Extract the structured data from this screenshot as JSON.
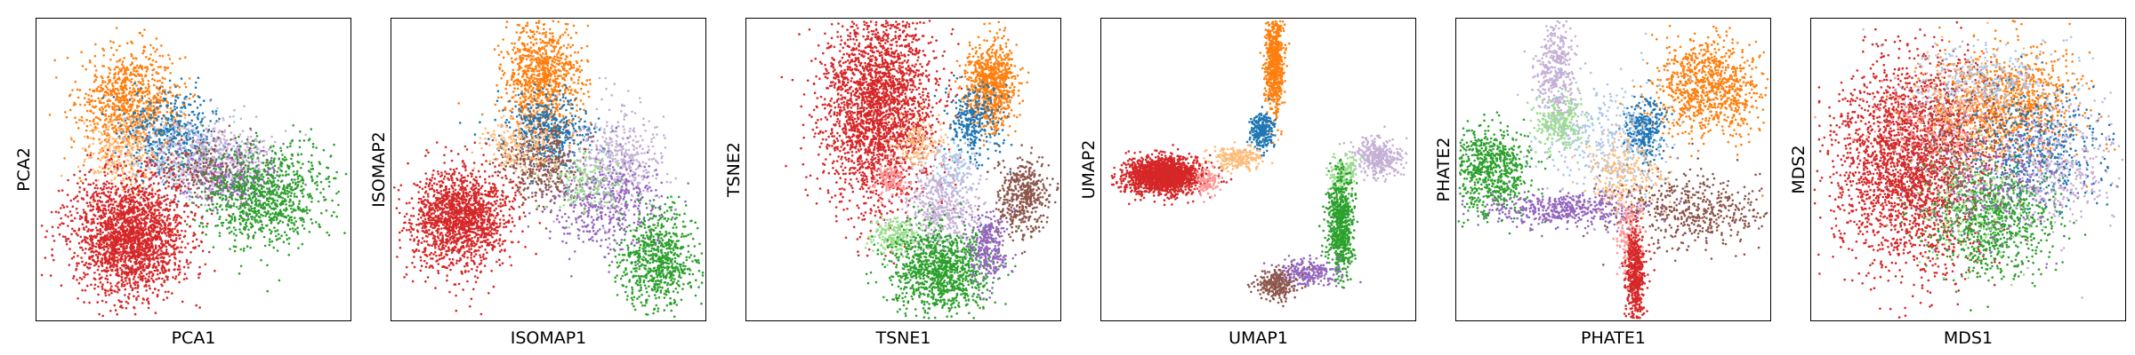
{
  "palette": {
    "blue": "#1f77b4",
    "orange": "#ff7f0e",
    "light_orange": "#ffbb78",
    "green": "#2ca02c",
    "light_green": "#98df8a",
    "red": "#d62728",
    "pink": "#ff9896",
    "purple": "#9467bd",
    "lavender": "#c5b0d5",
    "brown": "#8c564b",
    "light_blue": "#aec7e8"
  },
  "chart_data": [
    {
      "type": "scatter",
      "xlabel": "PCA1",
      "ylabel": "PCA2",
      "xlim": [
        0,
        100
      ],
      "ylim": [
        0,
        100
      ],
      "ticks": "none",
      "grid": false,
      "clusters": [
        {
          "color": "orange",
          "center": [
            30,
            72
          ],
          "spread": [
            8,
            9
          ],
          "points": 900
        },
        {
          "color": "blue",
          "center": [
            43,
            62
          ],
          "spread": [
            8,
            7
          ],
          "points": 450
        },
        {
          "color": "light_orange",
          "center": [
            27,
            55
          ],
          "spread": [
            6,
            6
          ],
          "points": 250
        },
        {
          "color": "light_blue",
          "center": [
            45,
            55
          ],
          "spread": [
            9,
            7
          ],
          "points": 250
        },
        {
          "color": "lavender",
          "center": [
            58,
            53
          ],
          "spread": [
            9,
            6
          ],
          "points": 450
        },
        {
          "color": "purple",
          "center": [
            62,
            47
          ],
          "spread": [
            8,
            5
          ],
          "points": 250
        },
        {
          "color": "brown",
          "center": [
            55,
            50
          ],
          "spread": [
            7,
            6
          ],
          "points": 200
        },
        {
          "color": "green",
          "center": [
            73,
            41
          ],
          "spread": [
            10,
            8
          ],
          "points": 900
        },
        {
          "color": "red",
          "center": [
            30,
            28
          ],
          "spread": [
            9,
            10
          ],
          "points": 2200
        }
      ]
    },
    {
      "type": "scatter",
      "xlabel": "ISOMAP1",
      "ylabel": "ISOMAP2",
      "xlim": [
        0,
        100
      ],
      "ylim": [
        0,
        100
      ],
      "ticks": "none",
      "grid": false,
      "clusters": [
        {
          "color": "orange",
          "center": [
            48,
            80
          ],
          "spread": [
            6,
            9
          ],
          "points": 900
        },
        {
          "color": "blue",
          "center": [
            50,
            63
          ],
          "spread": [
            7,
            6
          ],
          "points": 450
        },
        {
          "color": "brown",
          "center": [
            48,
            52
          ],
          "spread": [
            7,
            7
          ],
          "points": 450
        },
        {
          "color": "light_orange",
          "center": [
            40,
            58
          ],
          "spread": [
            6,
            5
          ],
          "points": 200
        },
        {
          "color": "lavender",
          "center": [
            72,
            52
          ],
          "spread": [
            7,
            9
          ],
          "points": 450
        },
        {
          "color": "purple",
          "center": [
            68,
            38
          ],
          "spread": [
            9,
            8
          ],
          "points": 450
        },
        {
          "color": "light_green",
          "center": [
            62,
            45
          ],
          "spread": [
            5,
            5
          ],
          "points": 150
        },
        {
          "color": "green",
          "center": [
            85,
            20
          ],
          "spread": [
            6,
            8
          ],
          "points": 700
        },
        {
          "color": "red",
          "center": [
            22,
            34
          ],
          "spread": [
            8,
            8
          ],
          "points": 1600
        }
      ]
    },
    {
      "type": "scatter",
      "xlabel": "TSNE1",
      "ylabel": "TSNE2",
      "xlim": [
        0,
        100
      ],
      "ylim": [
        0,
        100
      ],
      "ticks": "none",
      "grid": false,
      "clusters": [
        {
          "color": "red",
          "center": [
            42,
            71
          ],
          "spread": [
            9,
            17
          ],
          "points": 2600
        },
        {
          "color": "orange",
          "center": [
            78,
            78
          ],
          "spread": [
            4,
            7
          ],
          "points": 800
        },
        {
          "color": "blue",
          "center": [
            72,
            66
          ],
          "spread": [
            4,
            6
          ],
          "points": 300
        },
        {
          "color": "light_orange",
          "center": [
            55,
            58
          ],
          "spread": [
            4,
            4
          ],
          "points": 150
        },
        {
          "color": "light_blue",
          "center": [
            65,
            50
          ],
          "spread": [
            4,
            5
          ],
          "points": 150
        },
        {
          "color": "pink",
          "center": [
            46,
            47
          ],
          "spread": [
            2.5,
            3
          ],
          "points": 120
        },
        {
          "color": "lavender",
          "center": [
            62,
            37
          ],
          "spread": [
            6,
            7
          ],
          "points": 450
        },
        {
          "color": "light_green",
          "center": [
            47,
            28
          ],
          "spread": [
            4,
            3
          ],
          "points": 200
        },
        {
          "color": "green",
          "center": [
            62,
            17
          ],
          "spread": [
            8,
            7
          ],
          "points": 1100
        },
        {
          "color": "purple",
          "center": [
            77,
            25
          ],
          "spread": [
            3,
            6
          ],
          "points": 300
        },
        {
          "color": "brown",
          "center": [
            88,
            41
          ],
          "spread": [
            4,
            6
          ],
          "points": 450
        }
      ]
    },
    {
      "type": "scatter",
      "xlabel": "UMAP1",
      "ylabel": "UMAP2",
      "xlim": [
        0,
        100
      ],
      "ylim": [
        0,
        100
      ],
      "ticks": "none",
      "grid": false,
      "clusters": [
        {
          "color": "red",
          "center": [
            20,
            48
          ],
          "spread": [
            6,
            3
          ],
          "points": 1800
        },
        {
          "color": "orange",
          "center": [
            55,
            85
          ],
          "spread": [
            1.5,
            8
          ],
          "points": 700
        },
        {
          "color": "blue",
          "center": [
            51,
            63
          ],
          "spread": [
            2,
            3
          ],
          "points": 250
        },
        {
          "color": "light_orange",
          "center": [
            43,
            54
          ],
          "spread": [
            4,
            2
          ],
          "points": 200
        },
        {
          "color": "pink",
          "center": [
            34,
            46
          ],
          "spread": [
            2,
            2
          ],
          "points": 100
        },
        {
          "color": "lavender",
          "center": [
            88,
            54
          ],
          "spread": [
            4,
            3
          ],
          "points": 350
        },
        {
          "color": "light_green",
          "center": [
            77,
            49
          ],
          "spread": [
            2,
            3
          ],
          "points": 150
        },
        {
          "color": "green",
          "center": [
            76,
            32
          ],
          "spread": [
            2,
            8
          ],
          "points": 700
        },
        {
          "color": "purple",
          "center": [
            66,
            16
          ],
          "spread": [
            5,
            2
          ],
          "points": 250
        },
        {
          "color": "brown",
          "center": [
            56,
            12
          ],
          "spread": [
            3,
            2.5
          ],
          "points": 250
        }
      ]
    },
    {
      "type": "scatter",
      "xlabel": "PHATE1",
      "ylabel": "PHATE2",
      "xlim": [
        0,
        100
      ],
      "ylim": [
        0,
        100
      ],
      "ticks": "none",
      "grid": false,
      "clusters": [
        {
          "color": "orange",
          "center": [
            80,
            77
          ],
          "spread": [
            9,
            8
          ],
          "points": 900
        },
        {
          "color": "blue",
          "center": [
            60,
            63
          ],
          "spread": [
            3,
            5
          ],
          "points": 300
        },
        {
          "color": "lavender",
          "center": [
            32,
            82
          ],
          "spread": [
            3,
            10
          ],
          "points": 400
        },
        {
          "color": "light_green",
          "center": [
            33,
            65
          ],
          "spread": [
            4,
            4
          ],
          "points": 250
        },
        {
          "color": "green",
          "center": [
            11,
            50
          ],
          "spread": [
            6,
            7
          ],
          "points": 700
        },
        {
          "color": "purple",
          "center": [
            35,
            37
          ],
          "spread": [
            12,
            3
          ],
          "points": 500
        },
        {
          "color": "light_orange",
          "center": [
            54,
            48
          ],
          "spread": [
            6,
            6
          ],
          "points": 250
        },
        {
          "color": "brown",
          "center": [
            74,
            37
          ],
          "spread": [
            12,
            6
          ],
          "points": 500
        },
        {
          "color": "pink",
          "center": [
            55,
            27
          ],
          "spread": [
            2,
            7
          ],
          "points": 200
        },
        {
          "color": "red",
          "center": [
            57,
            15
          ],
          "spread": [
            1.5,
            8
          ],
          "points": 500
        },
        {
          "color": "light_blue",
          "center": [
            48,
            60
          ],
          "spread": [
            10,
            10
          ],
          "points": 350
        }
      ]
    },
    {
      "type": "scatter",
      "xlabel": "MDS1",
      "ylabel": "MDS2",
      "xlim": [
        0,
        100
      ],
      "ylim": [
        0,
        100
      ],
      "ticks": "none",
      "grid": false,
      "clusters": [
        {
          "color": "red",
          "center": [
            32,
            52
          ],
          "spread": [
            12,
            17
          ],
          "points": 2600
        },
        {
          "color": "orange",
          "center": [
            63,
            72
          ],
          "spread": [
            11,
            9
          ],
          "points": 900
        },
        {
          "color": "blue",
          "center": [
            72,
            58
          ],
          "spread": [
            10,
            9
          ],
          "points": 500
        },
        {
          "color": "green",
          "center": [
            58,
            33
          ],
          "spread": [
            10,
            9
          ],
          "points": 800
        },
        {
          "color": "lavender",
          "center": [
            78,
            52
          ],
          "spread": [
            9,
            11
          ],
          "points": 400
        },
        {
          "color": "brown",
          "center": [
            48,
            60
          ],
          "spread": [
            10,
            10
          ],
          "points": 300
        },
        {
          "color": "purple",
          "center": [
            60,
            48
          ],
          "spread": [
            12,
            12
          ],
          "points": 300
        },
        {
          "color": "light_blue",
          "center": [
            55,
            80
          ],
          "spread": [
            12,
            6
          ],
          "points": 300
        },
        {
          "color": "light_orange",
          "center": [
            50,
            70
          ],
          "spread": [
            10,
            9
          ],
          "points": 200
        },
        {
          "color": "light_green",
          "center": [
            50,
            40
          ],
          "spread": [
            9,
            10
          ],
          "points": 200
        },
        {
          "color": "pink",
          "center": [
            40,
            65
          ],
          "spread": [
            10,
            8
          ],
          "points": 200
        }
      ]
    }
  ]
}
